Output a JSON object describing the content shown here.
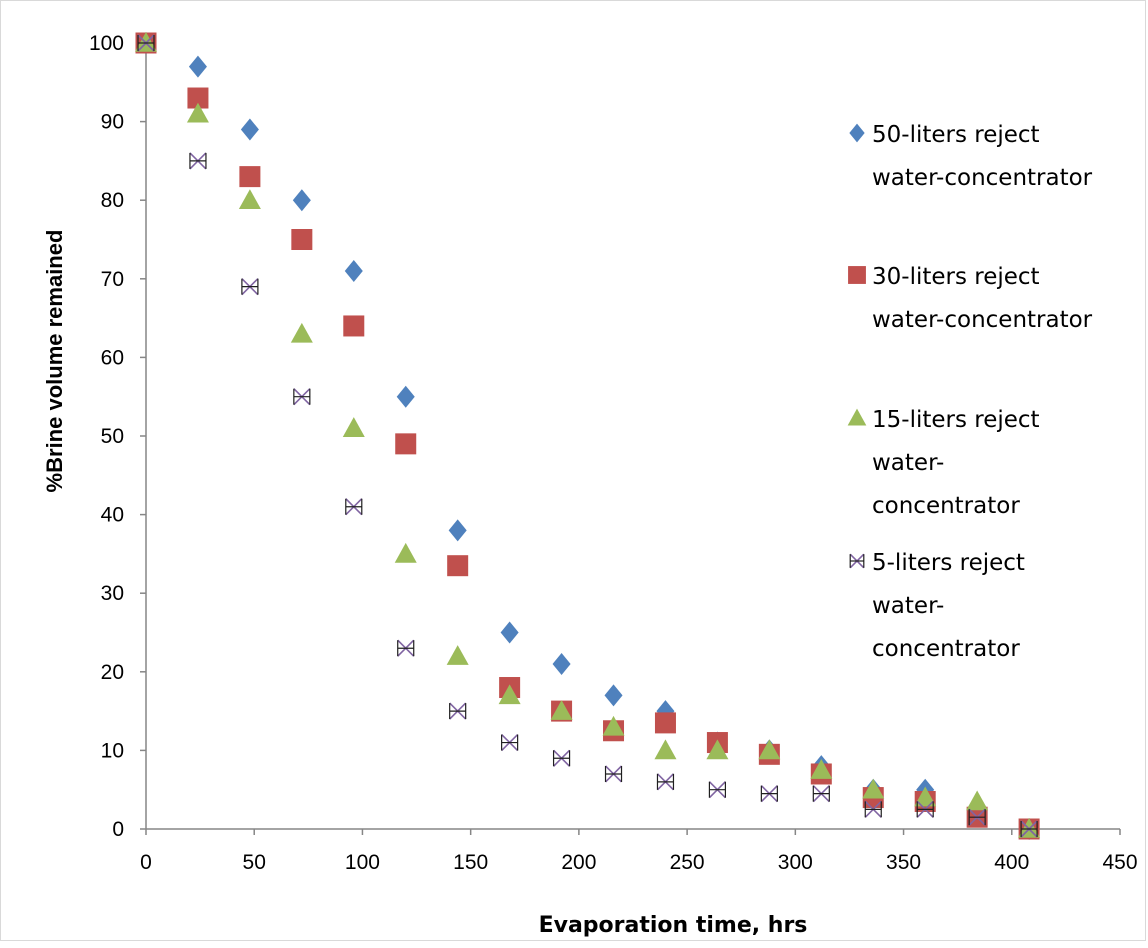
{
  "chart_data": {
    "type": "scatter",
    "title": "",
    "xlabel": "Evaporation time, hrs",
    "ylabel": "%Brine volume remained",
    "xlim": [
      0,
      450
    ],
    "ylim": [
      0,
      100
    ],
    "xticks": [
      "0",
      "50",
      "100",
      "150",
      "200",
      "250",
      "300",
      "350",
      "400",
      "450"
    ],
    "yticks": [
      "0",
      "10",
      "20",
      "30",
      "40",
      "50",
      "60",
      "70",
      "80",
      "90",
      "100"
    ],
    "grid": false,
    "legend_position": "right",
    "series": [
      {
        "name": "50-liters reject water-concentrator",
        "legend_lines": [
          "50-liters reject",
          "water-concentrator"
        ],
        "marker": "diamond",
        "color": "#4f81bd",
        "x": [
          0,
          24,
          48,
          72,
          96,
          120,
          144,
          168,
          192,
          216,
          240,
          264,
          288,
          312,
          336,
          360,
          384,
          408
        ],
        "y": [
          100,
          97,
          89,
          80,
          71,
          55,
          38,
          25,
          21,
          17,
          15,
          11,
          10,
          8,
          5,
          5,
          2,
          0
        ]
      },
      {
        "name": "30-liters reject water-concentrator",
        "legend_lines": [
          "30-liters reject",
          "water-concentrator"
        ],
        "marker": "square",
        "color": "#c0504d",
        "x": [
          0,
          24,
          48,
          72,
          96,
          120,
          144,
          168,
          192,
          216,
          240,
          264,
          288,
          312,
          336,
          360,
          384,
          408
        ],
        "y": [
          100,
          93,
          83,
          75,
          64,
          49,
          33.5,
          18,
          15,
          12.5,
          13.5,
          11,
          9.5,
          7,
          4,
          3.5,
          1.5,
          0
        ]
      },
      {
        "name": "15-liters reject water-concentrator",
        "legend_lines": [
          "15-liters reject",
          "water-",
          "concentrator"
        ],
        "marker": "triangle",
        "color": "#9bbb59",
        "x": [
          0,
          24,
          48,
          72,
          96,
          120,
          144,
          168,
          192,
          216,
          240,
          264,
          288,
          312,
          336,
          360,
          384,
          408
        ],
        "y": [
          100,
          91,
          80,
          63,
          51,
          35,
          22,
          17,
          15,
          13,
          10,
          10,
          10,
          7.5,
          5,
          4,
          3.5,
          0
        ]
      },
      {
        "name": "5-liters reject water-concentrator",
        "legend_lines": [
          "5-liters reject",
          "water-",
          "concentrator"
        ],
        "marker": "x",
        "color": "#8064a2",
        "x": [
          0,
          24,
          48,
          72,
          96,
          120,
          144,
          168,
          192,
          216,
          240,
          264,
          288,
          312,
          336,
          360,
          384,
          408
        ],
        "y": [
          100,
          85,
          69,
          55,
          41,
          23,
          15,
          11,
          9,
          7,
          6,
          5,
          4.5,
          4.5,
          2.5,
          2.5,
          1.5,
          0
        ]
      }
    ]
  }
}
